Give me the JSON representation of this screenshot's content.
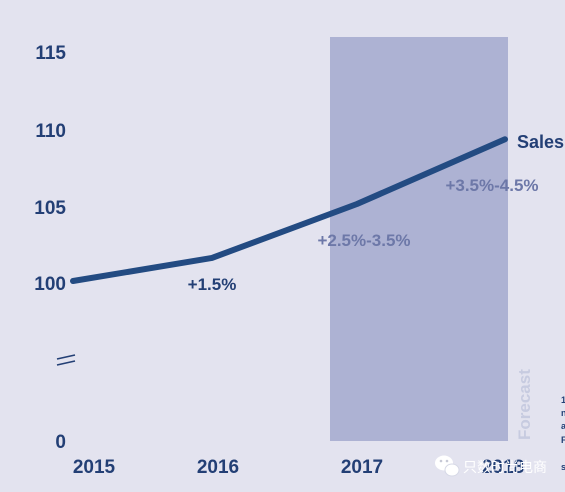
{
  "chart_data": {
    "type": "line",
    "x": [
      "2015",
      "2016",
      "2017",
      "2018"
    ],
    "series": [
      {
        "name": "Sales",
        "values": [
          100,
          101.5,
          105,
          109.2
        ]
      }
    ],
    "y_ticks": [
      "115",
      "110",
      "105",
      "100",
      "0"
    ],
    "ylim": [
      95,
      117
    ],
    "y_axis_break": true,
    "forecast_region": {
      "label": "Forecast",
      "from": "2017",
      "to": "2018"
    },
    "annotations": [
      {
        "text": "+1.5%",
        "x": "2016",
        "style": "actual"
      },
      {
        "text": "+2.5%-3.5%",
        "x": "2017",
        "style": "forecast"
      },
      {
        "text": "+3.5%-4.5%",
        "x": "2018",
        "style": "forecast"
      }
    ],
    "footnote_fragments": [
      "1",
      "n",
      "a",
      "F",
      "s"
    ],
    "colors": {
      "line": "#234b82",
      "forecast_band": "#adb2d3",
      "axis_text": "#233f75",
      "forecast_annotation": "#6d78a8",
      "background": "#e3e3ef"
    }
  },
  "watermark": {
    "text": "只数时尚电商",
    "icon": "wechat-bubble-icon"
  }
}
